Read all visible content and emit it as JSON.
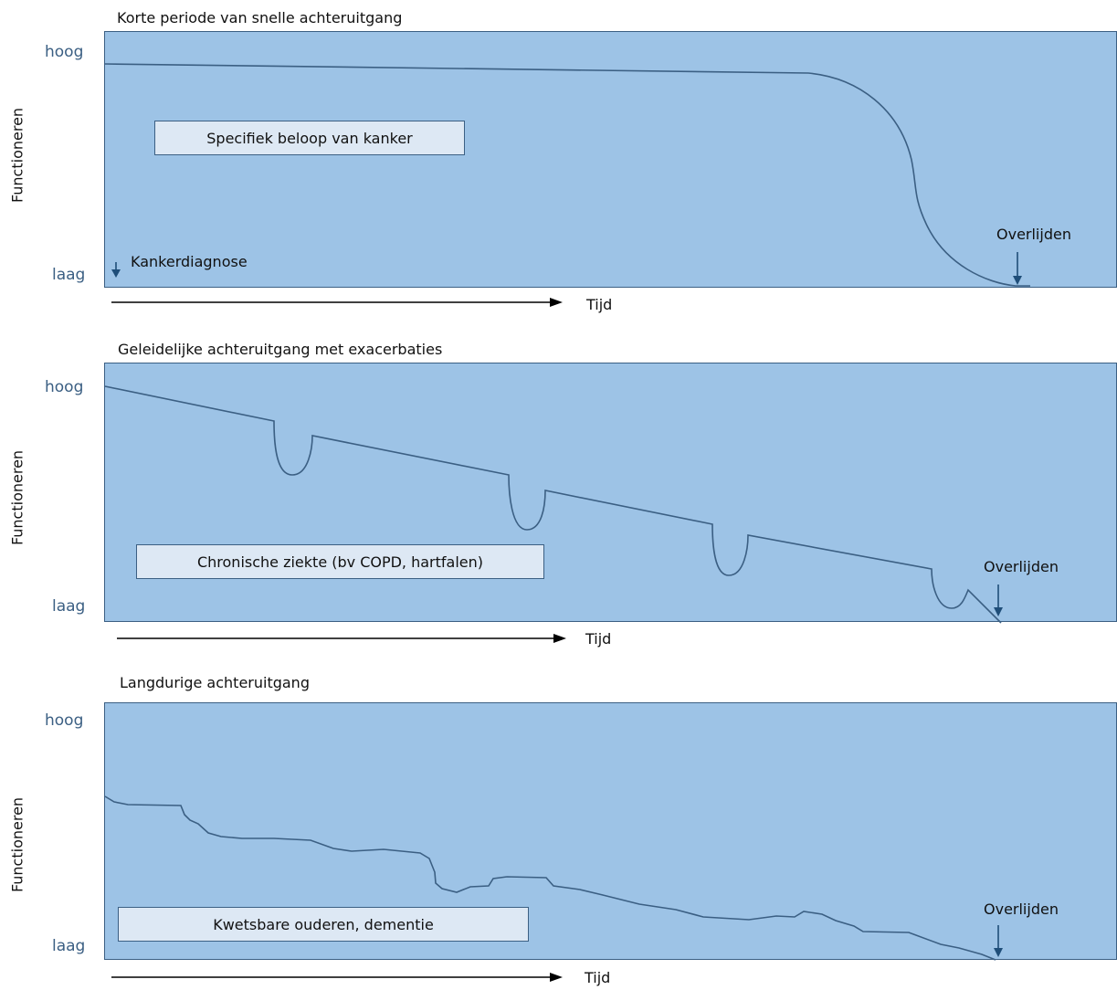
{
  "panels": [
    {
      "title": "Korte periode van snelle achteruitgang",
      "y_high": "hoog",
      "y_low": "laag",
      "y_axis_label": "Functioneren",
      "box_label": "Specifiek beloop van kanker",
      "start_marker_label": "Kankerdiagnose",
      "end_marker_label": "Overlijden",
      "time_label": "Tijd"
    },
    {
      "title": "Geleidelijke achteruitgang met exacerbaties",
      "y_high": "hoog",
      "y_low": "laag",
      "y_axis_label": "Functioneren",
      "box_label": "Chronische ziekte (bv COPD, hartfalen)",
      "end_marker_label": "Overlijden",
      "time_label": "Tijd"
    },
    {
      "title": "Langdurige achteruitgang",
      "y_high": "hoog",
      "y_low": "laag",
      "y_axis_label": "Functioneren",
      "box_label": "Kwetsbare ouderen, dementie",
      "end_marker_label": "Overlijden",
      "time_label": "Tijd"
    }
  ],
  "colors": {
    "plot_fill": "#9dc3e6",
    "curve": "#3b5f83",
    "label_box_fill": "#dde8f4",
    "tick_text": "#3b5f83"
  }
}
